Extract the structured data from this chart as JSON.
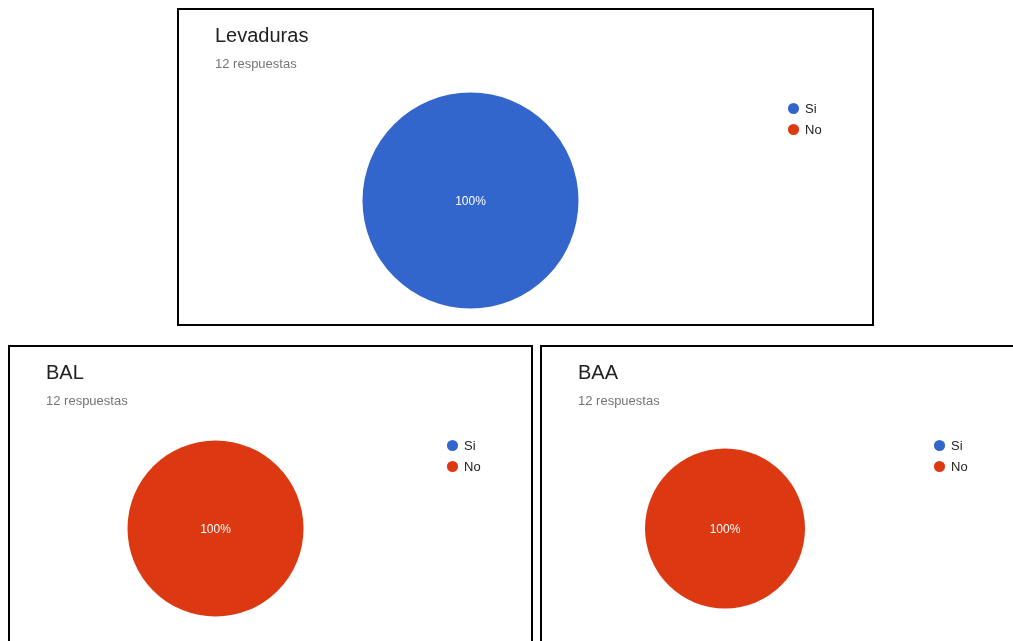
{
  "chart_data": [
    {
      "type": "pie",
      "title": "Levaduras",
      "subtitle": "12 respuestas",
      "categories": [
        "Si",
        "No"
      ],
      "values": [
        100,
        0
      ],
      "colors": [
        "#3366cc",
        "#dc3912"
      ],
      "value_labels": [
        "100%",
        null
      ],
      "legend": "right"
    },
    {
      "type": "pie",
      "title": "BAL",
      "subtitle": "12 respuestas",
      "categories": [
        "Si",
        "No"
      ],
      "values": [
        0,
        100
      ],
      "colors": [
        "#3366cc",
        "#dc3912"
      ],
      "value_labels": [
        null,
        "100%"
      ],
      "legend": "right"
    },
    {
      "type": "pie",
      "title": "BAA",
      "subtitle": "12 respuestas",
      "categories": [
        "Si",
        "No"
      ],
      "values": [
        0,
        100
      ],
      "colors": [
        "#3366cc",
        "#dc3912"
      ],
      "value_labels": [
        null,
        "100%"
      ],
      "legend": "right"
    }
  ]
}
